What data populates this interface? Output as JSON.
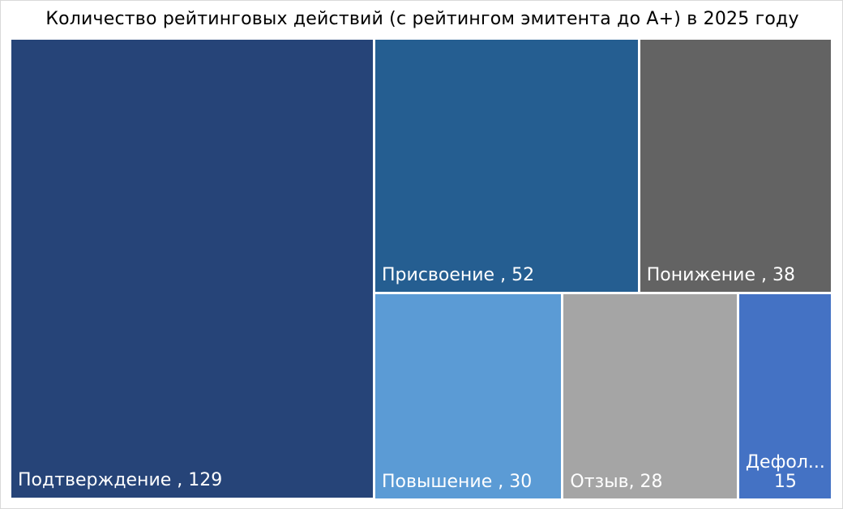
{
  "chart_data": {
    "type": "treemap",
    "title": "Количество рейтинговых действий (с рейтингом эмитента до А+)  в 2025 году",
    "label_separator": " , ",
    "items": [
      {
        "name": "Подтверждение",
        "value": 129,
        "color": "#264478",
        "label": "Подтверждение , 129"
      },
      {
        "name": "Присвоение",
        "value": 52,
        "color": "#255E91",
        "label": "Присвоение , 52"
      },
      {
        "name": "Понижение",
        "value": 38,
        "color": "#636363",
        "label": "Понижение , 38"
      },
      {
        "name": "Повышение",
        "value": 30,
        "color": "#5B9BD5",
        "label": "Повышение , 30"
      },
      {
        "name": "Отзыв",
        "value": 28,
        "color": "#A5A5A5",
        "label": "Отзыв, 28"
      },
      {
        "name": "Дефолт",
        "value": 15,
        "color": "#4472C4",
        "label_name": "Дефол...",
        "label_value": "15"
      }
    ]
  }
}
